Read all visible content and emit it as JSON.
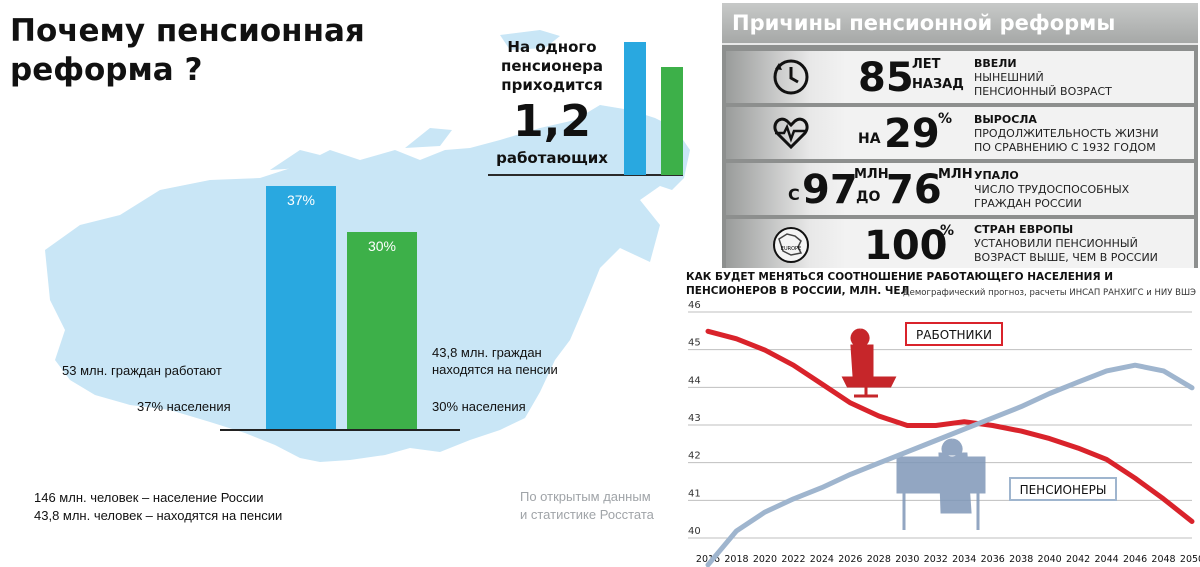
{
  "title": "Почему пенсионная реформа ?",
  "ratio": {
    "text": "На одного пенсионера приходится",
    "value": "1,2",
    "sub": "работающих"
  },
  "colors": {
    "blue": "#29a8e0",
    "green": "#3db049",
    "map": "#c9e6f6",
    "red": "#d9232b",
    "steel": "#9fb5ce"
  },
  "bars": [
    {
      "label": "37%",
      "value": 37,
      "color": "#29a8e0"
    },
    {
      "label": "30%",
      "value": 30,
      "color": "#3db049"
    }
  ],
  "notes": {
    "working_1": "53 млн. граждан работают",
    "working_2": "37% населения",
    "pension_1": "43,8 млн. граждан",
    "pension_2": "находятся на пенсии",
    "pension_3": "30% населения",
    "population_1": "146 млн. человек – население России",
    "population_2": "43,8 млн. человек – находятся на пенсии",
    "source_1": "По открытым данным",
    "source_2": "и статистике Росстата"
  },
  "reasons": {
    "title": "Причины пенсионной реформы",
    "items": [
      {
        "icon": "clock-icon",
        "prefix": "",
        "number": "85",
        "unit_1": "ЛЕТ",
        "unit_2": "НАЗАД",
        "head": "ВВЕЛИ",
        "desc_1": "НЫНЕШНИЙ",
        "desc_2": "ПЕНСИОННЫЙ ВОЗРАСТ"
      },
      {
        "icon": "heart-pulse-icon",
        "prefix": "НА",
        "number": "29",
        "unit_1": "%",
        "head": "ВЫРОСЛА",
        "desc_1": "ПРОДОЛЖИТЕЛЬНОСТЬ ЖИЗНИ",
        "desc_2": "ПО СРАВНЕНИЮ С 1932 ГОДОМ"
      },
      {
        "prefix_1": "С",
        "number_1": "97",
        "unit_1": "МЛН",
        "prefix_2": "ДО",
        "number_2": "76",
        "unit_2": "МЛН",
        "head": "УПАЛО",
        "desc_1": "ЧИСЛО ТРУДОСПОСОБНЫХ",
        "desc_2": "ГРАЖДАН РОССИИ"
      },
      {
        "icon": "europe-map-icon",
        "icon_text": "EUROPE",
        "number": "100",
        "unit_1": "%",
        "head": "СТРАН ЕВРОПЫ",
        "desc_1": "УСТАНОВИЛИ ПЕНСИОННЫЙ",
        "desc_2": "ВОЗРАСТ ВЫШЕ, ЧЕМ В РОССИИ"
      }
    ]
  },
  "chart_data": {
    "type": "line",
    "title": "КАК БУДЕТ МЕНЯТЬСЯ СООТНОШЕНИЕ РАБОТАЮЩЕГО НАСЕЛЕНИЯ И ПЕНСИОНЕРОВ В РОССИИ, МЛН. ЧЕЛ",
    "source": "Демографический прогноз, расчеты ИНСАП РАНХИГС и НИУ ВШЭ",
    "x": [
      2016,
      2018,
      2020,
      2022,
      2024,
      2026,
      2028,
      2030,
      2032,
      2034,
      2036,
      2038,
      2040,
      2042,
      2044,
      2046,
      2048,
      2050
    ],
    "ylim": [
      40,
      46
    ],
    "yticks": [
      40,
      41,
      42,
      43,
      44,
      45,
      46
    ],
    "grid": true,
    "series": [
      {
        "name": "РАБОТНИКИ",
        "color": "#d9232b",
        "values": [
          45.7,
          45.5,
          45.2,
          44.8,
          44.3,
          43.8,
          43.45,
          43.2,
          43.2,
          43.3,
          43.2,
          43.05,
          42.85,
          42.6,
          42.3,
          41.8,
          41.25,
          40.65
        ]
      },
      {
        "name": "ПЕНСИОНЕРЫ",
        "color": "#9fb5ce",
        "values": [
          39.5,
          40.4,
          40.9,
          41.25,
          41.55,
          41.9,
          42.2,
          42.5,
          42.8,
          43.1,
          43.4,
          43.7,
          44.05,
          44.35,
          44.65,
          44.8,
          44.65,
          44.2
        ]
      }
    ]
  }
}
